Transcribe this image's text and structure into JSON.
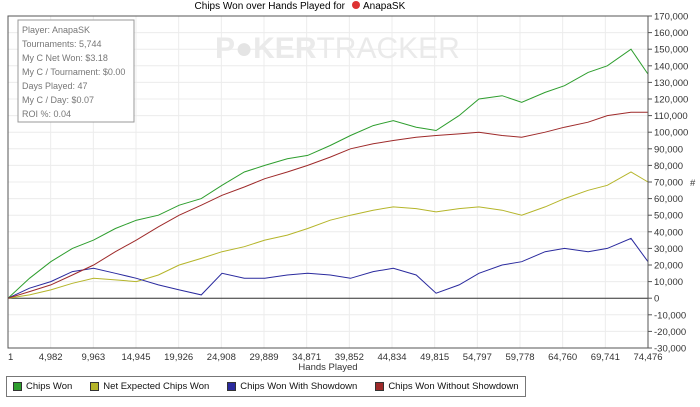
{
  "chart_data": {
    "type": "line",
    "title": "Chips Won over Hands Played for",
    "player_name": "AnapaSK",
    "xlabel": "Hands Played",
    "ylabel": "#",
    "x_ticks": [
      "1",
      "4,982",
      "9,963",
      "14,945",
      "19,926",
      "24,908",
      "29,889",
      "34,871",
      "39,852",
      "44,834",
      "49,815",
      "54,797",
      "59,778",
      "64,760",
      "69,741",
      "74,476"
    ],
    "y_ticks": [
      "-30,000",
      "-20,000",
      "-10,000",
      "0",
      "10,000",
      "20,000",
      "30,000",
      "40,000",
      "50,000",
      "60,000",
      "70,000",
      "80,000",
      "90,000",
      "100,000",
      "110,000",
      "120,000",
      "130,000",
      "140,000",
      "150,000",
      "160,000",
      "170,000"
    ],
    "xlim": [
      1,
      74476
    ],
    "ylim": [
      -30000,
      170000
    ],
    "grid": true,
    "legend_placement": "bottom",
    "x": [
      1,
      2500,
      4982,
      7500,
      9963,
      12500,
      14945,
      17500,
      19926,
      22500,
      24908,
      27500,
      29889,
      32500,
      34871,
      37500,
      39852,
      42500,
      44834,
      47500,
      49815,
      52500,
      54797,
      57500,
      59778,
      62500,
      64760,
      67500,
      69741,
      72500,
      74476
    ],
    "series": [
      {
        "name": "Chips Won",
        "color": "#2e9e2e",
        "values": [
          0,
          12000,
          22000,
          30000,
          35000,
          42000,
          47000,
          50000,
          56000,
          60000,
          68000,
          76000,
          80000,
          84000,
          86000,
          92000,
          98000,
          104000,
          107000,
          103000,
          101000,
          110000,
          120000,
          122000,
          118000,
          124000,
          128000,
          136000,
          140000,
          150000,
          135000
        ]
      },
      {
        "name": "Net Expected Chips Won",
        "color": "#b5b52a",
        "values": [
          0,
          2000,
          5000,
          9000,
          12000,
          11000,
          10000,
          14000,
          20000,
          24000,
          28000,
          31000,
          35000,
          38000,
          42000,
          47000,
          50000,
          53000,
          55000,
          54000,
          52000,
          54000,
          55000,
          53000,
          50000,
          55000,
          60000,
          65000,
          68000,
          76000,
          70000
        ]
      },
      {
        "name": "Chips Won With Showdown",
        "color": "#2a2a9e",
        "values": [
          0,
          6000,
          10000,
          16000,
          18000,
          15000,
          12000,
          8000,
          5000,
          2000,
          15000,
          12000,
          12000,
          14000,
          15000,
          14000,
          12000,
          16000,
          18000,
          14000,
          3000,
          8000,
          15000,
          20000,
          22000,
          28000,
          30000,
          28000,
          30000,
          36000,
          22000
        ]
      },
      {
        "name": "Chips Won Without Showdown",
        "color": "#9e2a2a",
        "values": [
          0,
          4000,
          8000,
          14000,
          20000,
          28000,
          35000,
          43000,
          50000,
          56000,
          62000,
          67000,
          72000,
          76000,
          80000,
          85000,
          90000,
          93000,
          95000,
          97000,
          98000,
          99000,
          100000,
          98000,
          97000,
          100000,
          103000,
          106000,
          110000,
          112000,
          112000
        ]
      }
    ]
  },
  "stats_box": [
    "Player: AnapaSK",
    "Tournaments: 5,744",
    "My C Net Won: $3.18",
    "My C / Tournament: $0.00",
    "Days Played: 47",
    "My C / Day: $0.07",
    "ROI %: 0.04"
  ],
  "watermark": "POKERTRACKER"
}
